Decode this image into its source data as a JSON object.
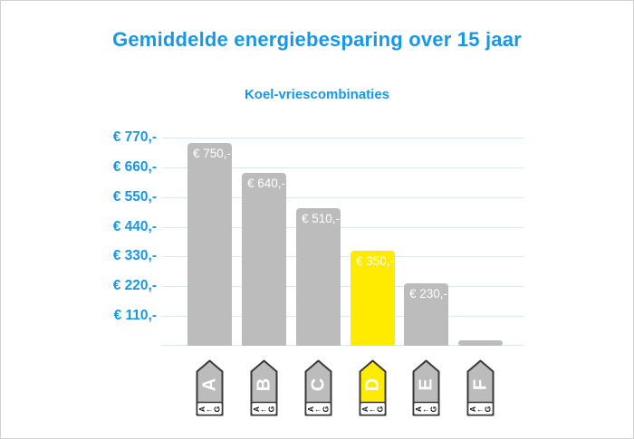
{
  "title": "Gemiddelde energiebesparing over 15 jaar",
  "subtitle": "Koel-vriescombinaties",
  "colors": {
    "accent_blue": "#1897e7",
    "bar_gray": "#bcbcbc",
    "bar_highlight_yellow": "#ffeb00",
    "gridline_blue": "#d3e9f8",
    "bar_label_white": "#ffffff",
    "tag_border": "#383838"
  },
  "y_axis": {
    "tick_labels": [
      "€ 770,-",
      "€ 660,-",
      "€ 550,-",
      "€ 440,-",
      "€ 330,-",
      "€ 220,-",
      "€ 110,-"
    ],
    "max": 770,
    "step": 110
  },
  "chart_data": {
    "type": "bar",
    "title": "Gemiddelde energiebesparing over 15 jaar",
    "subtitle": "Koel-vriescombinaties",
    "categories": [
      "A",
      "B",
      "C",
      "D",
      "E",
      "F"
    ],
    "values": [
      750,
      640,
      510,
      350,
      230,
      20
    ],
    "bar_labels": [
      "€ 750,-",
      "€ 640,-",
      "€ 510,-",
      "€ 350,-",
      "€ 230,-",
      ""
    ],
    "highlighted_category": "D",
    "ylim": [
      0,
      770
    ],
    "grid": true,
    "legend": "none",
    "currency": "EUR"
  },
  "energy_tags": {
    "scale_from": "A",
    "scale_arrow": "←",
    "scale_to": "G"
  }
}
